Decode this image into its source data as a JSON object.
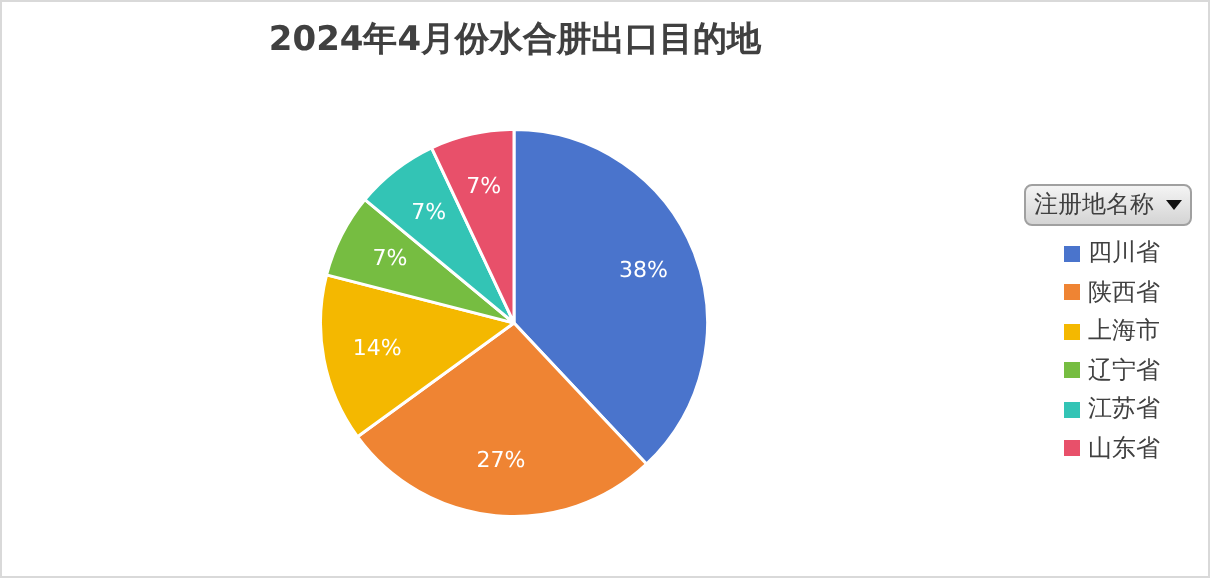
{
  "chart_data": {
    "type": "pie",
    "title": "2024年4月份水合肼出口目的地",
    "legend_title": "注册地名称",
    "legend": "right",
    "categories": [
      "四川省",
      "陕西省",
      "上海市",
      "辽宁省",
      "江苏省",
      "山东省"
    ],
    "values": [
      38,
      27,
      14,
      7,
      7,
      7
    ],
    "colors": [
      "#4a74cc",
      "#ef8433",
      "#f4b800",
      "#76bd41",
      "#33c4b5",
      "#e8506a"
    ],
    "value_labels": [
      "38%",
      "27%",
      "14%",
      "7%",
      "7%",
      "7%"
    ]
  }
}
